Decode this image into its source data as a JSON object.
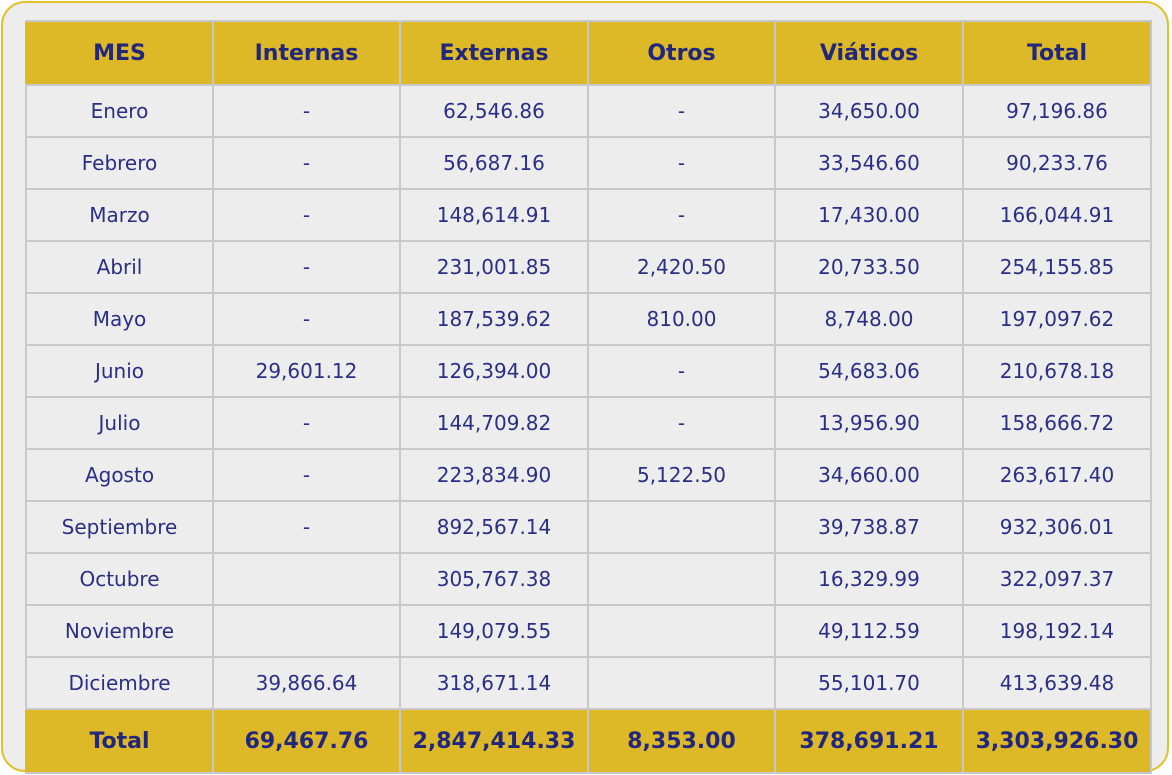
{
  "table": {
    "headers": [
      "MES",
      "Internas",
      "Externas",
      "Otros",
      "Viáticos",
      "Total"
    ],
    "rows": [
      [
        "Enero",
        "-",
        "62,546.86",
        "-",
        "34,650.00",
        "97,196.86"
      ],
      [
        "Febrero",
        "-",
        "56,687.16",
        "-",
        "33,546.60",
        "90,233.76"
      ],
      [
        "Marzo",
        "-",
        "148,614.91",
        "-",
        "17,430.00",
        "166,044.91"
      ],
      [
        "Abril",
        "-",
        "231,001.85",
        "2,420.50",
        "20,733.50",
        "254,155.85"
      ],
      [
        "Mayo",
        "-",
        "187,539.62",
        "810.00",
        "8,748.00",
        "197,097.62"
      ],
      [
        "Junio",
        "29,601.12",
        "126,394.00",
        "-",
        "54,683.06",
        "210,678.18"
      ],
      [
        "Julio",
        "-",
        "144,709.82",
        "-",
        "13,956.90",
        "158,666.72"
      ],
      [
        "Agosto",
        "-",
        "223,834.90",
        "5,122.50",
        "34,660.00",
        "263,617.40"
      ],
      [
        "Septiembre",
        "-",
        "892,567.14",
        "",
        "39,738.87",
        "932,306.01"
      ],
      [
        "Octubre",
        "",
        "305,767.38",
        "",
        "16,329.99",
        "322,097.37"
      ],
      [
        "Noviembre",
        "",
        "149,079.55",
        "",
        "49,112.59",
        "198,192.14"
      ],
      [
        "Diciembre",
        "39,866.64",
        "318,671.14",
        "",
        "55,101.70",
        "413,639.48"
      ]
    ],
    "total": [
      "Total",
      "69,467.76",
      "2,847,414.33",
      "8,353.00",
      "378,691.21",
      "3,303,926.30"
    ]
  },
  "colors": {
    "header_bg": "#DDB827",
    "card_bg": "#EDEDEE",
    "card_border": "#E3C12A",
    "text": "#2A2E86",
    "grid": "#C9C9CC"
  }
}
